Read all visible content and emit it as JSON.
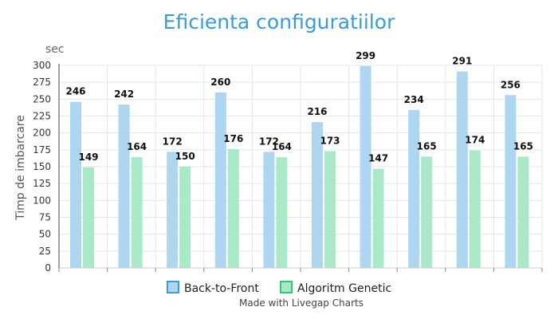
{
  "chart_data": {
    "type": "bar",
    "title": "Eficienta configuratiilor",
    "ylabel": "Timp de imbarcare",
    "yunit": "sec",
    "ylim": [
      0,
      300
    ],
    "yticks": [
      0,
      25,
      50,
      75,
      100,
      125,
      150,
      175,
      200,
      225,
      250,
      275,
      300
    ],
    "categories": [
      "",
      "",
      "",
      "",
      "",
      "",
      "",
      "",
      "",
      ""
    ],
    "series": [
      {
        "name": "Back-to-Front",
        "color": "#aed6f1",
        "border": "#3a9bd5",
        "values": [
          246,
          242,
          172,
          260,
          172,
          216,
          299,
          234,
          291,
          256
        ]
      },
      {
        "name": "Algoritm Genetic",
        "color": "#a9e9c8",
        "border": "#2ecc71",
        "values": [
          149,
          164,
          150,
          176,
          164,
          173,
          147,
          165,
          174,
          165
        ]
      }
    ],
    "grid": true,
    "legend": "bottom-center",
    "footer": "Made with Livegap Charts"
  }
}
